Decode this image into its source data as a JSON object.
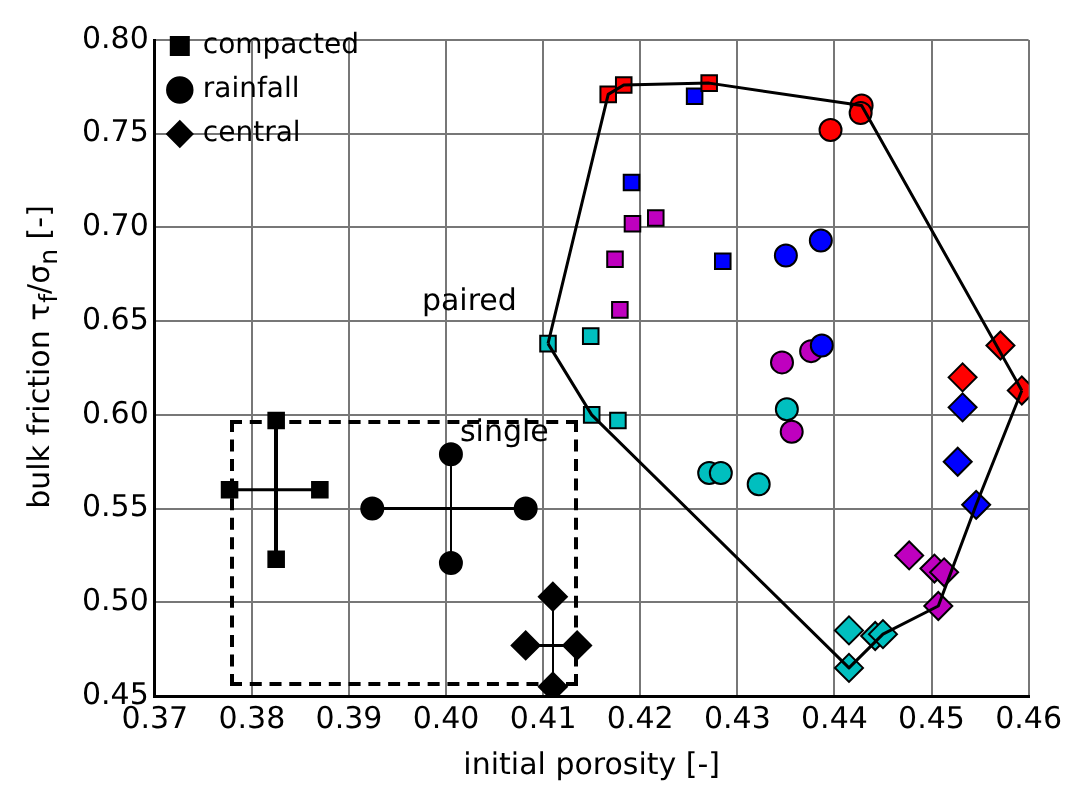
{
  "chart_data": {
    "type": "scatter",
    "xlabel": "initial porosity [-]",
    "ylabel": "bulk friction τ$_{f}$/σ$_{n}$ [-]",
    "xlim": [
      0.37,
      0.46
    ],
    "xticks": [
      0.37,
      0.38,
      0.39,
      {
        "value": 0.4,
        "label": "0.40"
      },
      0.41,
      0.42,
      0.43,
      0.44,
      0.45,
      0.46
    ],
    "ylim": [
      0.45,
      0.8
    ],
    "yticks": [
      0.45,
      {
        "value": 0.5,
        "label": "0.50"
      },
      0.55,
      {
        "value": 0.6,
        "label": "0.60"
      },
      0.65,
      {
        "value": 0.7,
        "label": "0.70"
      },
      0.75,
      {
        "value": 0.8,
        "label": "0.80"
      }
    ],
    "grid": true,
    "legend": "top left",
    "annotations": [
      "paired",
      "single"
    ],
    "series": [
      {
        "type": "line",
        "color": "#000000",
        "marker": "none",
        "x": [
          0.4105,
          0.4167,
          0.4183,
          0.4271,
          0.4428,
          0.4593
        ],
        "values": [
          0.638,
          0.771,
          0.776,
          0.777,
          0.765,
          0.613
        ]
      },
      {
        "type": "line",
        "color": "#000000",
        "marker": "none",
        "x": [
          0.4105,
          0.415,
          0.4415,
          0.445,
          0.4507,
          0.4546,
          0.4593
        ],
        "values": [
          0.638,
          0.6,
          0.465,
          0.483,
          0.498,
          0.552,
          0.613
        ]
      },
      {
        "type": "line",
        "name": "compacted",
        "color": "#000000",
        "marker": "square",
        "x": [
          0.3777,
          0.387
        ],
        "values": [
          0.56,
          0.56
        ]
      },
      {
        "type": "line",
        "name": "rainfall",
        "color": "#000000",
        "marker": "circle",
        "x": [
          0.3924,
          0.4082
        ],
        "values": [
          0.55,
          0.55
        ]
      },
      {
        "type": "line",
        "name": "central",
        "color": "#000000",
        "marker": "diamond",
        "x": [
          0.4082,
          0.4135
        ],
        "values": [
          0.477,
          0.477
        ]
      },
      {
        "color": "#000000",
        "marker": "square",
        "x": [
          0.3825,
          0.3825
        ],
        "values": [
          0.597,
          0.523
        ]
      },
      {
        "color": "#000000",
        "marker": "circle",
        "x": [
          0.4005,
          0.4005
        ],
        "values": [
          0.579,
          0.521
        ]
      },
      {
        "color": "#000000",
        "marker": "diamond",
        "x": [
          0.411,
          0.411
        ],
        "values": [
          0.503,
          0.455
        ]
      },
      {
        "color": "#ff0000",
        "marker": "square",
        "x": [
          0.4167,
          0.4183,
          0.4271
        ],
        "values": [
          0.771,
          0.776,
          0.777
        ]
      },
      {
        "color": "#0000ff",
        "marker": "square",
        "x": [
          0.4256,
          0.4191,
          0.4285
        ],
        "values": [
          0.77,
          0.724,
          0.682
        ]
      },
      {
        "color": "#bf00bf",
        "marker": "square",
        "x": [
          0.4192,
          0.4216,
          0.4174,
          0.4179
        ],
        "values": [
          0.702,
          0.705,
          0.683,
          0.656
        ]
      },
      {
        "color": "#00bfbf",
        "marker": "square",
        "x": [
          0.4105,
          0.4149,
          0.415,
          0.4177
        ],
        "values": [
          0.638,
          0.642,
          0.6,
          0.597
        ]
      },
      {
        "color": "#ff0000",
        "marker": "circle",
        "x": [
          0.4428,
          0.4427,
          0.4396
        ],
        "values": [
          0.765,
          0.761,
          0.752
        ]
      },
      {
        "color": "#0000ff",
        "marker": "circle",
        "x": [
          0.435,
          0.4386,
          0.4387
        ],
        "values": [
          0.685,
          0.693,
          0.637
        ]
      },
      {
        "color": "#bf00bf",
        "marker": "circle",
        "x": [
          0.4376,
          0.4346,
          0.4356
        ],
        "values": [
          0.634,
          0.628,
          0.591
        ]
      },
      {
        "color": "#00bfbf",
        "marker": "circle",
        "x": [
          0.4351,
          0.4271,
          0.4283,
          0.4322
        ],
        "values": [
          0.603,
          0.569,
          0.569,
          0.563
        ]
      },
      {
        "color": "#ff0000",
        "marker": "diamond",
        "x": [
          0.4571,
          0.4532,
          0.4593
        ],
        "values": [
          0.637,
          0.62,
          0.613
        ]
      },
      {
        "color": "#0000ff",
        "marker": "diamond",
        "x": [
          0.4532,
          0.4527,
          0.4546
        ],
        "values": [
          0.604,
          0.575,
          0.552
        ]
      },
      {
        "color": "#bf00bf",
        "marker": "diamond",
        "x": [
          0.4477,
          0.4503,
          0.4513,
          0.4507
        ],
        "values": [
          0.525,
          0.518,
          0.516,
          0.498
        ]
      },
      {
        "color": "#00bfbf",
        "marker": "diamond",
        "x": [
          0.4415,
          0.4442,
          0.445,
          0.4415
        ],
        "values": [
          0.485,
          0.482,
          0.483,
          0.465
        ]
      }
    ]
  }
}
